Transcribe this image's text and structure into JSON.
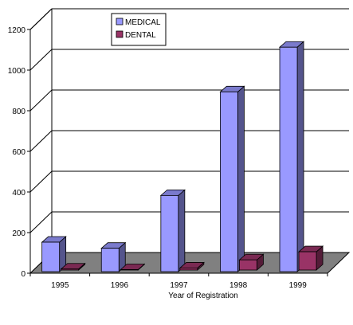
{
  "chart_data": {
    "type": "bar",
    "categories": [
      "1995",
      "1996",
      "1997",
      "1998",
      "1999"
    ],
    "series": [
      {
        "name": "MEDICAL",
        "values": [
          145,
          115,
          375,
          885,
          1105
        ],
        "color": "#9999ff"
      },
      {
        "name": "DENTAL",
        "values": [
          5,
          2,
          10,
          50,
          90
        ],
        "color": "#993366"
      }
    ],
    "xlabel": "Year of Registration",
    "ylabel": "",
    "ylim": [
      0,
      1200
    ],
    "yticks": [
      0,
      200,
      400,
      600,
      800,
      1000,
      1200
    ],
    "grid": true,
    "legend_position": "top-center",
    "floor_color": "#808080"
  }
}
